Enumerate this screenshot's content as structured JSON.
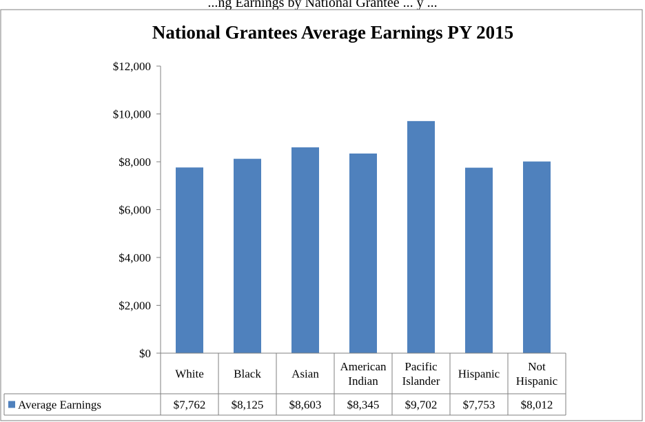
{
  "clipped_header": "...ng Earnings by National Grantee ... y ...",
  "chart_data": {
    "type": "bar",
    "title": "National Grantees Average Earnings PY 2015",
    "categories": [
      [
        "White"
      ],
      [
        "Black"
      ],
      [
        "Asian"
      ],
      [
        "American",
        "Indian"
      ],
      [
        "Pacific",
        "Islander"
      ],
      [
        "Hispanic"
      ],
      [
        "Not",
        "Hispanic"
      ]
    ],
    "series": [
      {
        "name": "Average Earnings",
        "values": [
          7762,
          8125,
          8603,
          8345,
          9702,
          7753,
          8012
        ],
        "labels": [
          "$7,762",
          "$8,125",
          "$8,603",
          "$8,345",
          "$9,702",
          "$7,753",
          "$8,012"
        ]
      }
    ],
    "ylim": [
      0,
      12000
    ],
    "yticks": [
      0,
      2000,
      4000,
      6000,
      8000,
      10000,
      12000
    ],
    "ytick_labels": [
      "$0",
      "$2,000",
      "$4,000",
      "$6,000",
      "$8,000",
      "$10,000",
      "$12,000"
    ],
    "grid": false,
    "legend": "data-table-bottom",
    "colors": {
      "bar": "#4f81bd",
      "axis": "#808080",
      "border": "#7f7f7f"
    }
  }
}
